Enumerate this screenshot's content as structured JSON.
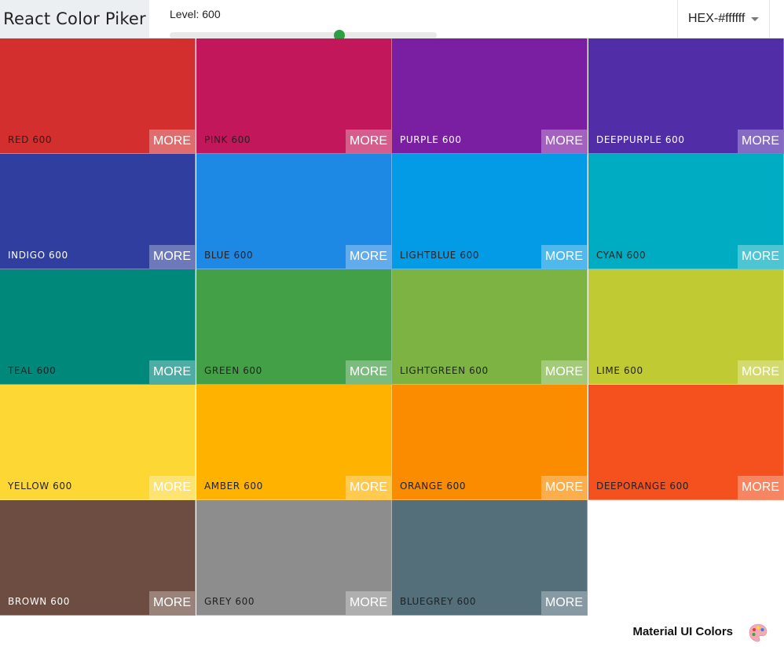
{
  "navbar": {
    "logo": "React Color Piker",
    "level_label": "Level: 600",
    "level_value": 600,
    "level_min": 100,
    "level_max": 900,
    "format_value": "HEX-#ffffff"
  },
  "palette": {
    "more_label": "MORE",
    "colors": [
      {
        "name": "RED 600",
        "color": "#d32f2f",
        "text": "#222222"
      },
      {
        "name": "PINK 600",
        "color": "#c2185b",
        "text": "#222222"
      },
      {
        "name": "PURPLE 600",
        "color": "#7b1fa2",
        "text": "#ffffff"
      },
      {
        "name": "DEEPPURPLE 600",
        "color": "#512da8",
        "text": "#ffffff"
      },
      {
        "name": "INDIGO 600",
        "color": "#303f9f",
        "text": "#ffffff"
      },
      {
        "name": "BLUE 600",
        "color": "#1e88e5",
        "text": "#222222"
      },
      {
        "name": "LIGHTBLUE 600",
        "color": "#039be5",
        "text": "#222222"
      },
      {
        "name": "CYAN 600",
        "color": "#00acc1",
        "text": "#222222"
      },
      {
        "name": "TEAL 600",
        "color": "#00897b",
        "text": "#222222"
      },
      {
        "name": "GREEN 600",
        "color": "#43a047",
        "text": "#222222"
      },
      {
        "name": "LIGHTGREEN 600",
        "color": "#7cb342",
        "text": "#222222"
      },
      {
        "name": "LIME 600",
        "color": "#c0ca33",
        "text": "#222222"
      },
      {
        "name": "YELLOW 600",
        "color": "#fdd835",
        "text": "#222222"
      },
      {
        "name": "AMBER 600",
        "color": "#ffb300",
        "text": "#222222"
      },
      {
        "name": "ORANGE 600",
        "color": "#fb8c00",
        "text": "#222222"
      },
      {
        "name": "DEEPORANGE 600",
        "color": "#f4511e",
        "text": "#222222"
      },
      {
        "name": "BROWN 600",
        "color": "#6d4c41",
        "text": "#ffffff"
      },
      {
        "name": "GREY 600",
        "color": "#8d8d8d",
        "text": "#222222"
      },
      {
        "name": "BLUEGREY 600",
        "color": "#546e7a",
        "text": "#222222"
      }
    ]
  },
  "footer": {
    "text": "Material UI Colors",
    "icon": "palette-icon"
  }
}
